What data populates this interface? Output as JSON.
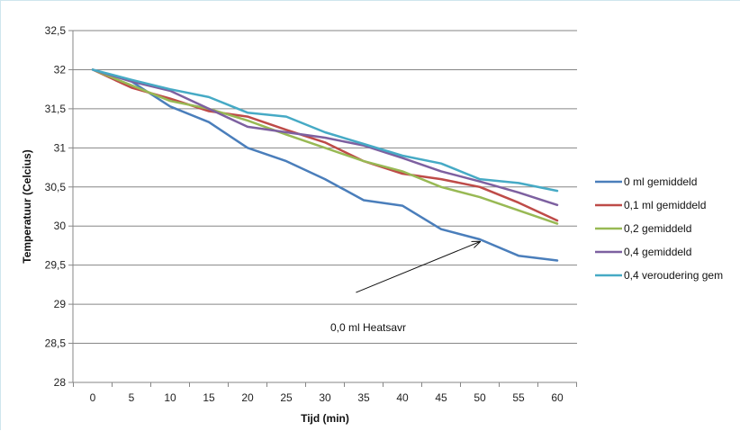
{
  "chart_data": {
    "type": "line",
    "xlabel": "Tijd (min)",
    "ylabel": "Temperatuur (Celcius)",
    "x": [
      0,
      5,
      10,
      15,
      20,
      25,
      30,
      35,
      40,
      45,
      50,
      55,
      60
    ],
    "x_tick_labels": [
      "0",
      "5",
      "10",
      "15",
      "20",
      "25",
      "30",
      "35",
      "40",
      "45",
      "50",
      "55",
      "60"
    ],
    "ylim": [
      28,
      32.5
    ],
    "y_tick_values": [
      28,
      28.5,
      29,
      29.5,
      30,
      30.5,
      31,
      31.5,
      32,
      32.5
    ],
    "y_tick_labels": [
      "28",
      "28,5",
      "29",
      "29,5",
      "30",
      "30,5",
      "31",
      "31,5",
      "32",
      "32,5"
    ],
    "grid": "horizontal",
    "legend_position": "right",
    "series": [
      {
        "name": "0 ml gemiddeld",
        "color": "#4a7ebb",
        "values": [
          32.0,
          31.85,
          31.53,
          31.33,
          31.0,
          30.83,
          30.6,
          30.33,
          30.26,
          29.96,
          29.83,
          29.62,
          29.56
        ]
      },
      {
        "name": "0,1 ml gemiddeld",
        "color": "#be4b48",
        "values": [
          32.0,
          31.77,
          31.63,
          31.47,
          31.4,
          31.23,
          31.07,
          30.83,
          30.67,
          30.6,
          30.5,
          30.3,
          30.07
        ]
      },
      {
        "name": "0,2 gemiddeld",
        "color": "#98b954",
        "values": [
          32.0,
          31.8,
          31.6,
          31.5,
          31.35,
          31.17,
          31.0,
          30.83,
          30.7,
          30.5,
          30.37,
          30.2,
          30.03
        ]
      },
      {
        "name": "0,4 gemiddeld",
        "color": "#7d60a0",
        "values": [
          32.0,
          31.85,
          31.73,
          31.5,
          31.27,
          31.2,
          31.13,
          31.03,
          30.87,
          30.7,
          30.57,
          30.43,
          30.27
        ]
      },
      {
        "name": "0,4 veroudering gem",
        "color": "#46aac5",
        "values": [
          32.0,
          31.87,
          31.75,
          31.65,
          31.45,
          31.4,
          31.2,
          31.05,
          30.9,
          30.8,
          30.6,
          30.55,
          30.45
        ]
      }
    ],
    "annotation": {
      "text": "0,0 ml Heatsavr",
      "arrow_from": [
        34,
        29.15
      ],
      "arrow_to": [
        50,
        29.8
      ]
    }
  }
}
